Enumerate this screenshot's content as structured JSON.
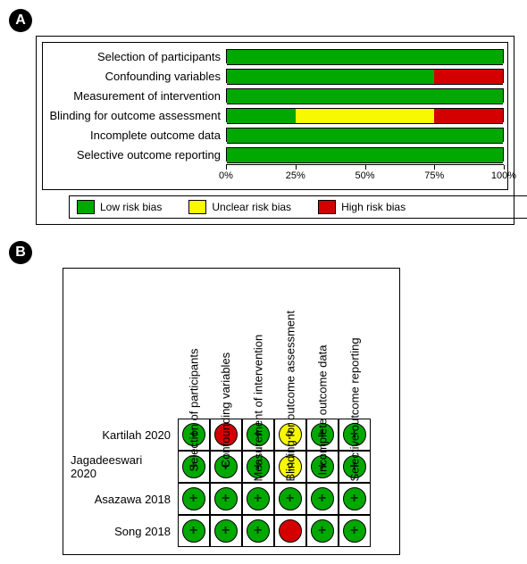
{
  "panelA": {
    "badge": "A",
    "categories": [
      "Selection of participants",
      "Confounding variables",
      "Measurement of intervention",
      "Blinding for outcome assessment",
      "Incomplete outcome data",
      "Selective outcome reporting"
    ],
    "bars": [
      {
        "low": 100,
        "unclear": 0,
        "high": 0
      },
      {
        "low": 75,
        "unclear": 0,
        "high": 25
      },
      {
        "low": 100,
        "unclear": 0,
        "high": 0
      },
      {
        "low": 25,
        "unclear": 50,
        "high": 25
      },
      {
        "low": 100,
        "unclear": 0,
        "high": 0
      },
      {
        "low": 100,
        "unclear": 0,
        "high": 0
      }
    ],
    "colors": {
      "low": "#00a800",
      "unclear": "#f8f800",
      "high": "#d40000"
    },
    "axis_ticks": [
      "0%",
      "25%",
      "50%",
      "75%",
      "100%"
    ],
    "legend": [
      {
        "swatch": "#00a800",
        "label": "Low risk bias"
      },
      {
        "swatch": "#f8f800",
        "label": "Unclear risk bias"
      },
      {
        "swatch": "#d40000",
        "label": "High risk bias"
      }
    ]
  },
  "panelB": {
    "badge": "B",
    "col_headers": [
      "Selection of participants",
      "Confounding variables",
      "Measurement of intervention",
      "Blinding for outcome assessment",
      "Incomplete outcome data",
      "Selective outcome reporting"
    ],
    "rows": [
      {
        "label": "Kartilah 2020",
        "cells": [
          "green",
          "red",
          "green",
          "yellow",
          "green",
          "green"
        ]
      },
      {
        "label": "Jagadeeswari 2020",
        "cells": [
          "green",
          "green",
          "green",
          "yellow",
          "green",
          "green"
        ]
      },
      {
        "label": "Asazawa 2018",
        "cells": [
          "green",
          "green",
          "green",
          "green",
          "green",
          "green"
        ]
      },
      {
        "label": "Song 2018",
        "cells": [
          "green",
          "green",
          "green",
          "red",
          "green",
          "green"
        ]
      }
    ],
    "symbols": {
      "green": "+",
      "red": "",
      "yellow": "?"
    }
  }
}
